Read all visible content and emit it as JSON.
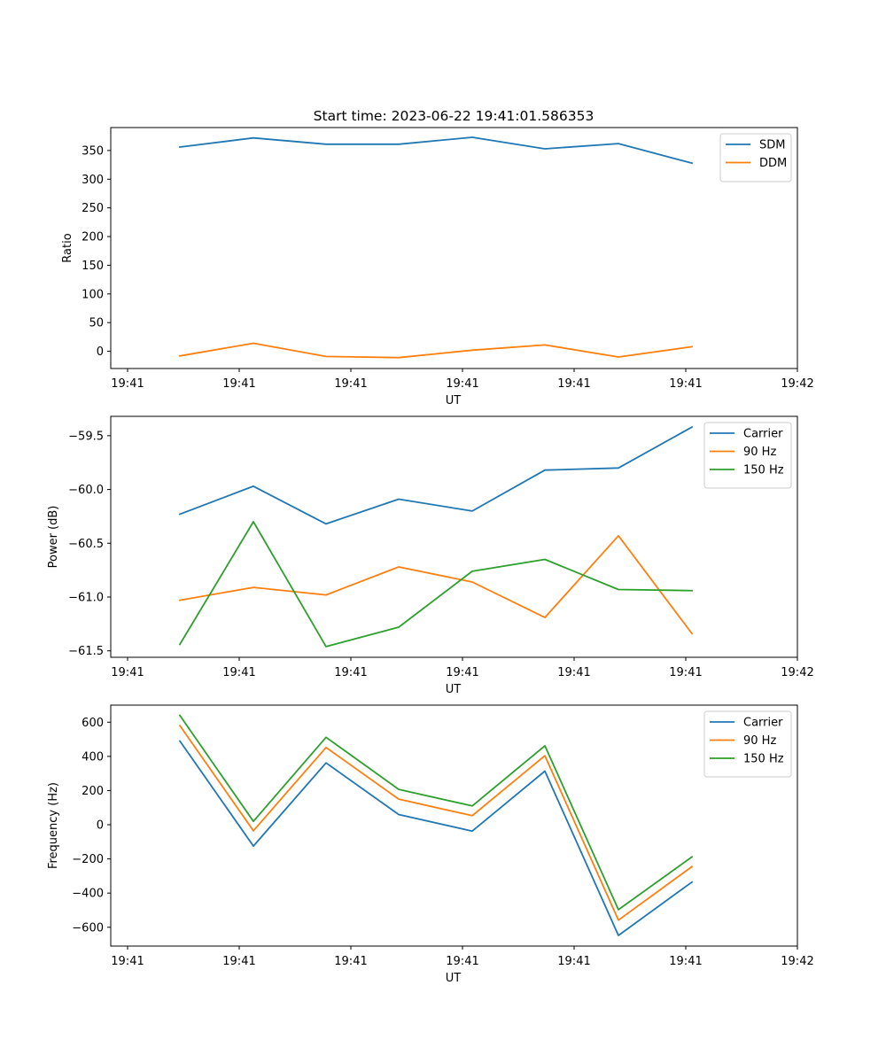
{
  "figure": {
    "title": "Start time: 2023-06-22 19:41:01.586353"
  },
  "chart_data": [
    {
      "type": "line",
      "title": "Start time: 2023-06-22 19:41:01.586353",
      "xlabel": "UT",
      "ylabel": "Ratio",
      "x_tick_labels": [
        "19:41",
        "19:41",
        "19:41",
        "19:41",
        "19:41",
        "19:41",
        "19:42"
      ],
      "y_ticks": [
        0,
        50,
        100,
        150,
        200,
        250,
        300,
        350
      ],
      "ylim": [
        -30,
        390
      ],
      "grid": false,
      "legend_position": "upper right",
      "series": [
        {
          "name": "SDM",
          "color": "#1f77b4",
          "values": [
            356,
            372,
            361,
            361,
            373,
            353,
            362,
            328
          ]
        },
        {
          "name": "DDM",
          "color": "#ff7f0e",
          "values": [
            -8,
            14,
            -9,
            -11,
            2,
            11,
            -10,
            8
          ]
        }
      ]
    },
    {
      "type": "line",
      "xlabel": "UT",
      "ylabel": "Power (dB)",
      "x_tick_labels": [
        "19:41",
        "19:41",
        "19:41",
        "19:41",
        "19:41",
        "19:41",
        "19:42"
      ],
      "y_ticks": [
        -61.5,
        -61.0,
        -60.5,
        -60.0,
        -59.5
      ],
      "y_tick_labels": [
        "−61.5",
        "−61.0",
        "−60.5",
        "−60.0",
        "−59.5"
      ],
      "ylim": [
        -61.56,
        -59.32
      ],
      "grid": false,
      "legend_position": "upper right",
      "series": [
        {
          "name": "Carrier",
          "color": "#1f77b4",
          "values": [
            -60.23,
            -59.97,
            -60.32,
            -60.09,
            -60.2,
            -59.82,
            -59.8,
            -59.42
          ]
        },
        {
          "name": "90 Hz",
          "color": "#ff7f0e",
          "values": [
            -61.03,
            -60.91,
            -60.98,
            -60.72,
            -60.86,
            -61.19,
            -60.43,
            -61.34
          ]
        },
        {
          "name": "150 Hz",
          "color": "#2ca02c",
          "values": [
            -61.44,
            -60.3,
            -61.46,
            -61.28,
            -60.76,
            -60.65,
            -60.93,
            -60.94
          ]
        }
      ]
    },
    {
      "type": "line",
      "xlabel": "UT",
      "ylabel": "Frequency (Hz)",
      "x_tick_labels": [
        "19:41",
        "19:41",
        "19:41",
        "19:41",
        "19:41",
        "19:41",
        "19:42"
      ],
      "y_ticks": [
        -600,
        -400,
        -200,
        0,
        200,
        400,
        600
      ],
      "y_tick_labels": [
        "−600",
        "−400",
        "−200",
        "0",
        "200",
        "400",
        "600"
      ],
      "ylim": [
        -710,
        700
      ],
      "grid": false,
      "legend_position": "upper right",
      "series": [
        {
          "name": "Carrier",
          "color": "#1f77b4",
          "values": [
            490,
            -125,
            362,
            60,
            -37,
            314,
            -648,
            -335
          ]
        },
        {
          "name": "90 Hz",
          "color": "#ff7f0e",
          "values": [
            580,
            -35,
            452,
            150,
            53,
            404,
            -558,
            -245
          ]
        },
        {
          "name": "150 Hz",
          "color": "#2ca02c",
          "values": [
            640,
            20,
            512,
            207,
            110,
            462,
            -497,
            -188
          ]
        }
      ]
    }
  ]
}
